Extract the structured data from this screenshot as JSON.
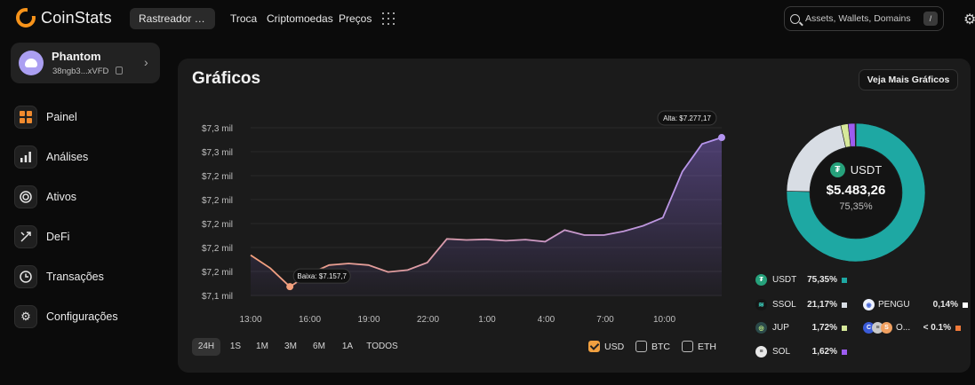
{
  "app": {
    "name": "CoinStats"
  },
  "nav": {
    "tracker": "Rastreador de ...",
    "swap": "Troca",
    "crypto": "Criptomoedas",
    "prices": "Preços"
  },
  "search": {
    "placeholder": "Assets, Wallets, Domains",
    "shortcut": "/"
  },
  "wallet": {
    "name": "Phantom",
    "address": "38ngb3...xVFD"
  },
  "sidebar": {
    "items": [
      {
        "label": "Painel",
        "icon": "dashboard-icon",
        "active": true
      },
      {
        "label": "Análises",
        "icon": "analytics-icon"
      },
      {
        "label": "Ativos",
        "icon": "assets-icon"
      },
      {
        "label": "DeFi",
        "icon": "defi-icon"
      },
      {
        "label": "Transações",
        "icon": "transactions-icon"
      },
      {
        "label": "Configurações",
        "icon": "settings-icon"
      }
    ]
  },
  "card": {
    "title": "Gráficos",
    "more_button": "Veja Mais Gráficos"
  },
  "chart_data": {
    "type": "area",
    "title": "Gráficos",
    "y_tick_labels": [
      "$7,3 mil",
      "$7,3 mil",
      "$7,2 mil",
      "$7,2 mil",
      "$7,2 mil",
      "$7,2 mil",
      "$7,2 mil",
      "$7,1 mil"
    ],
    "x_tick_labels": [
      "13:00",
      "16:00",
      "19:00",
      "22:00",
      "1:00",
      "4:00",
      "7:00",
      "10:00"
    ],
    "ylim": [
      7150,
      7285
    ],
    "x_hours": [
      12,
      13,
      14,
      15,
      16,
      17,
      18,
      19,
      20,
      21,
      22,
      23,
      24,
      25,
      26,
      27,
      28,
      29,
      30,
      31,
      32,
      33,
      34,
      35,
      36
    ],
    "values": [
      7183.0,
      7172.5,
      7157.7,
      7168.0,
      7175.0,
      7176.3,
      7175.0,
      7169.5,
      7171.0,
      7177.0,
      7196.0,
      7195.1,
      7195.6,
      7194.5,
      7195.4,
      7193.8,
      7203.0,
      7199.0,
      7199.0,
      7202.0,
      7206.5,
      7213.0,
      7250.0,
      7272.0,
      7277.17
    ],
    "low_series_color": "#f4a07c",
    "high_series_color": "#b394f0",
    "annotations": {
      "low": {
        "label": "Baixa: $7.157,7",
        "value": 7157.7,
        "x_hour": 14
      },
      "high": {
        "label": "Alta: $7.277,17",
        "value": 7277.17,
        "x_hour": 36
      }
    },
    "grid": true
  },
  "periods": [
    "24H",
    "1S",
    "1M",
    "3M",
    "6M",
    "1A",
    "TODOS"
  ],
  "active_period": "24H",
  "currencies": [
    {
      "label": "USD",
      "checked": true
    },
    {
      "label": "BTC",
      "checked": false
    },
    {
      "label": "ETH",
      "checked": false
    }
  ],
  "allocation": {
    "center": {
      "symbol": "USDT",
      "value": "$5.483,26",
      "percent": "75,35%"
    },
    "slices": [
      {
        "name": "USDT",
        "percent_label": "75,35%",
        "value": 75.35,
        "color": "#1ea8a3"
      },
      {
        "name": "SSOL",
        "percent_label": "21,17%",
        "value": 21.17,
        "color": "#d8dde4"
      },
      {
        "name": "JUP",
        "percent_label": "1,72%",
        "value": 1.72,
        "color": "#d6e89a"
      },
      {
        "name": "SOL",
        "percent_label": "1,62%",
        "value": 1.62,
        "color": "#9d5cf0"
      },
      {
        "name": "PENGU",
        "percent_label": "0,14%",
        "value": 0.14,
        "color": "#ffffff"
      },
      {
        "name": "O...",
        "percent_label": "< 0.1%",
        "value": 0.05,
        "color": "#f07a3a"
      }
    ]
  }
}
